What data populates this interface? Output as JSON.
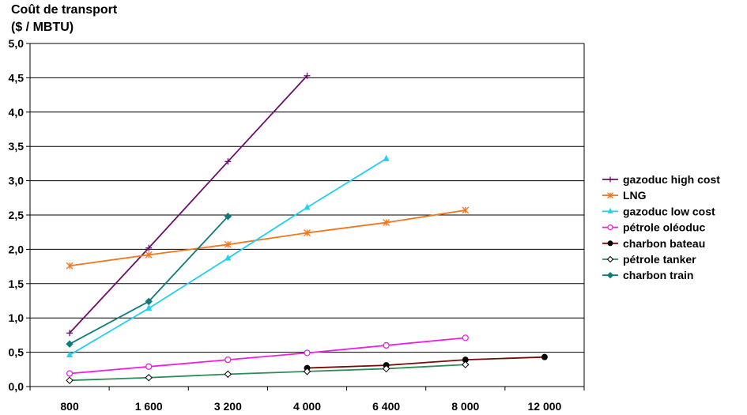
{
  "chart_data": {
    "type": "line",
    "title_line1": "Coût de transport",
    "title_line2": "($ / MBTU)",
    "categories": [
      "800",
      "1 600",
      "3 200",
      "4 000",
      "6 400",
      "8 000",
      "12 000"
    ],
    "yticks": [
      "0,0",
      "0,5",
      "1,0",
      "1,5",
      "2,0",
      "2,5",
      "3,0",
      "3,5",
      "4,0",
      "4,5",
      "5,0"
    ],
    "ylim": [
      0,
      5
    ],
    "grid": true,
    "legend_position": "right",
    "series": [
      {
        "name": "gazoduc high cost",
        "color": "#6a0f6a",
        "marker": "plus",
        "values": [
          0.78,
          2.02,
          3.28,
          4.53,
          null,
          null,
          null
        ]
      },
      {
        "name": "LNG",
        "color": "#f07820",
        "marker": "star",
        "values": [
          1.76,
          1.92,
          2.07,
          2.24,
          2.39,
          2.57,
          null
        ]
      },
      {
        "name": "gazoduc low cost",
        "color": "#22d0f0",
        "marker": "triangle",
        "values": [
          0.46,
          1.14,
          1.87,
          2.61,
          3.32,
          null,
          null
        ]
      },
      {
        "name": "pétrole oléoduc",
        "color": "#f020e0",
        "marker": "circle-open",
        "values": [
          0.19,
          0.29,
          0.39,
          0.49,
          0.6,
          0.71,
          null
        ]
      },
      {
        "name": "charbon bateau",
        "color": "#7a0a0a",
        "marker": "circle-filled",
        "values": [
          null,
          null,
          null,
          0.27,
          0.31,
          0.39,
          0.43
        ]
      },
      {
        "name": "pétrole tanker",
        "color": "#2e8b57",
        "marker": "diamond-open",
        "values": [
          0.09,
          0.13,
          0.18,
          0.22,
          0.26,
          0.32,
          null
        ]
      },
      {
        "name": "charbon train",
        "color": "#0f7a7a",
        "marker": "diamond-filled",
        "values": [
          0.62,
          1.24,
          2.48,
          null,
          null,
          null,
          null
        ]
      }
    ]
  }
}
